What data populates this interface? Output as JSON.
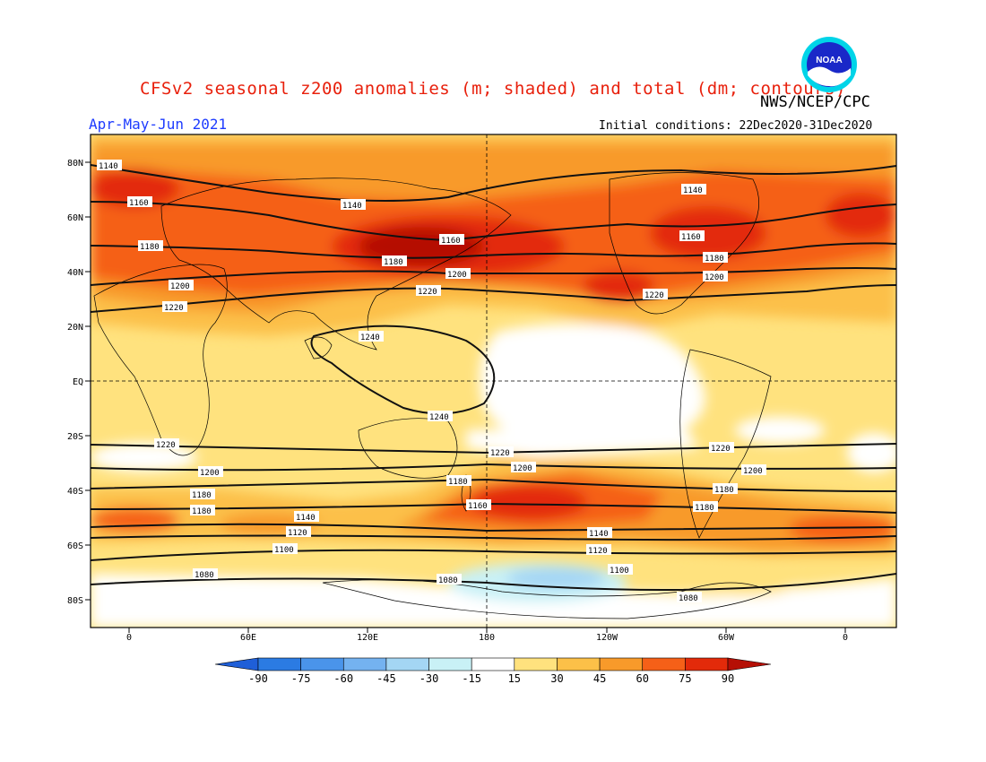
{
  "header": {
    "title": "CFSv2 seasonal z200 anomalies (m; shaded) and total (dm; contours)",
    "agency": "NWS/NCEP/CPC",
    "period": "Apr-May-Jun 2021",
    "initial_conditions": "Initial conditions: 22Dec2020-31Dec2020"
  },
  "logo": {
    "text": "NOAA",
    "icon": "noaa-logo-icon"
  },
  "map": {
    "lat_labels": [
      "80N",
      "60N",
      "40N",
      "20N",
      "EQ",
      "20S",
      "40S",
      "60S",
      "80S"
    ],
    "lon_labels": [
      "0",
      "60E",
      "120E",
      "180",
      "120W",
      "60W",
      "0"
    ],
    "contour_labels": {
      "c1140_n": "1140",
      "c1140_n2": "1140",
      "c1140_n3": "1140",
      "c1160_a": "1160",
      "c1160_b": "1160",
      "c1160_c": "1160",
      "c1180_a": "1180",
      "c1180_b": "1180",
      "c1180_c": "1180",
      "c1200_a": "1200",
      "c1200_b": "1200",
      "c1200_c": "1200",
      "c1220_a": "1220",
      "c1220_b": "1220",
      "c1220_c": "1220",
      "c1240_a": "1240",
      "c1240_b": "1240",
      "s1220_a": "1220",
      "s1220_b": "1220",
      "s1220_c": "1220",
      "s1200_a": "1200",
      "s1200_b": "1200",
      "s1200_c": "1200",
      "s1180_a": "1180",
      "s1180_b": "1180",
      "s1180_c": "1180",
      "s1180_d": "1180",
      "s1160_a": "1160",
      "s1160_b": "1180",
      "s1140_a": "1140",
      "s1140_b": "1140",
      "s1120_a": "1120",
      "s1120_b": "1120",
      "s1100_a": "1100",
      "s1100_b": "1100",
      "s1080_a": "1080",
      "s1080_b": "1080",
      "s1080_c": "1080"
    }
  },
  "colorbar": {
    "levels": [
      "-90",
      "-75",
      "-60",
      "-45",
      "-30",
      "-15",
      "15",
      "30",
      "45",
      "60",
      "75",
      "90"
    ],
    "colors": [
      "#1f5fd8",
      "#2b7be3",
      "#4a94ea",
      "#74b2f0",
      "#a4d6f4",
      "#c9f1f6",
      "#ffffff",
      "#ffe27e",
      "#fcc048",
      "#f89a2a",
      "#f56018",
      "#e32a0a",
      "#b50f05"
    ]
  }
}
